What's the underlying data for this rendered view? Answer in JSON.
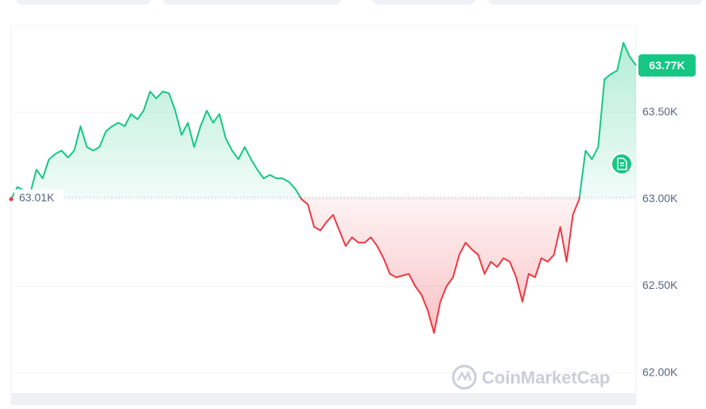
{
  "chart_data": {
    "type": "line",
    "values": [
      63000,
      63070,
      63050,
      63030,
      63170,
      63120,
      63230,
      63260,
      63280,
      63240,
      63280,
      63420,
      63300,
      63280,
      63300,
      63390,
      63420,
      63440,
      63420,
      63490,
      63460,
      63510,
      63620,
      63580,
      63620,
      63610,
      63510,
      63370,
      63440,
      63300,
      63420,
      63510,
      63440,
      63490,
      63350,
      63280,
      63230,
      63300,
      63230,
      63170,
      63120,
      63140,
      63120,
      63120,
      63100,
      63060,
      63000,
      62970,
      62840,
      62820,
      62870,
      62910,
      62820,
      62730,
      62780,
      62750,
      62750,
      62780,
      62730,
      62660,
      62570,
      62550,
      62560,
      62570,
      62500,
      62450,
      62360,
      62230,
      62410,
      62500,
      62550,
      62680,
      62750,
      62710,
      62680,
      62570,
      62640,
      62610,
      62660,
      62640,
      62550,
      62410,
      62570,
      62550,
      62660,
      62640,
      62680,
      62840,
      62640,
      62910,
      63000,
      63280,
      63230,
      63300,
      63690,
      63720,
      63740,
      63900,
      63820,
      63770
    ],
    "up_color": "#16c784",
    "down_color": "#ea3943",
    "baseline": {
      "value": 63010,
      "label": "63.01K"
    },
    "last_price": {
      "value": 63770,
      "label": "63.77K"
    },
    "ylim": [
      61870,
      64000
    ],
    "yticks": [
      {
        "value": 62000,
        "label": "62.00K"
      },
      {
        "value": 62500,
        "label": "62.50K"
      },
      {
        "value": 63000,
        "label": "63.00K"
      },
      {
        "value": 63500,
        "label": "63.50K"
      }
    ],
    "grid": true,
    "watermark": "CoinMarketCap"
  }
}
